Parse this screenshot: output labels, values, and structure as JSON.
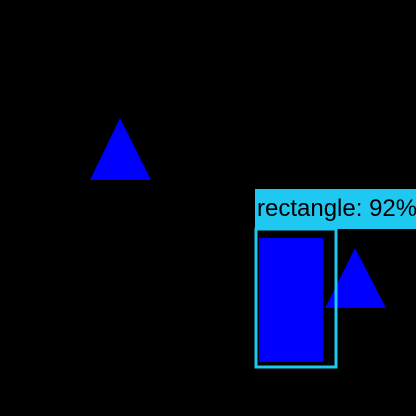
{
  "scene": {
    "background_color": "#000000",
    "shape_color": "#0000ff",
    "shapes": [
      {
        "kind": "triangle",
        "name": "triangle-upper-left"
      },
      {
        "kind": "rectangle",
        "name": "rectangle-detected"
      },
      {
        "kind": "triangle",
        "name": "triangle-lower-right"
      }
    ]
  },
  "detection": {
    "label": "rectangle: 92%",
    "box_color": "#1ec8f0"
  }
}
